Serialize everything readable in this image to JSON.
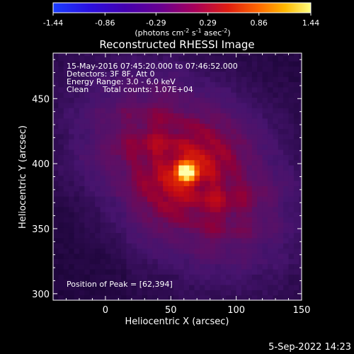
{
  "chart_data": {
    "type": "heatmap",
    "title": "Reconstructed RHESSI Image",
    "xlabel": "Heliocentric X (arcsec)",
    "ylabel": "Heliocentric Y (arcsec)",
    "xlim": [
      -40,
      150
    ],
    "ylim": [
      295,
      485
    ],
    "x_ticks": [
      0,
      50,
      100,
      150
    ],
    "y_ticks": [
      300,
      350,
      400,
      450
    ],
    "colorbar": {
      "ticks": [
        "-1.44",
        "-0.86",
        "-0.29",
        "0.29",
        "0.86",
        "1.44"
      ],
      "range": [
        -1.44,
        1.44
      ],
      "unit_text": "(photons cm",
      "unit_exp1": "-2",
      "unit_mid": " s",
      "unit_exp2": "-1",
      "unit_mid2": " asec",
      "unit_exp3": "-2",
      "unit_end": ")"
    },
    "peak": {
      "x": 62,
      "y": 394,
      "value": 1.44
    },
    "annotations": {
      "line1": "15-May-2016 07:45:20.000 to 07:46:52.000",
      "line2": "Detectors: 3F 8F, Att 0",
      "line3": "Energy Range: 3.0 - 6.0 keV",
      "line4_a": "Clean",
      "line4_b": "Total counts: 1.07E+04",
      "peak_label": "Position of Peak = [62,394]"
    }
  },
  "footer": {
    "timestamp": "5-Sep-2022 14:23"
  }
}
